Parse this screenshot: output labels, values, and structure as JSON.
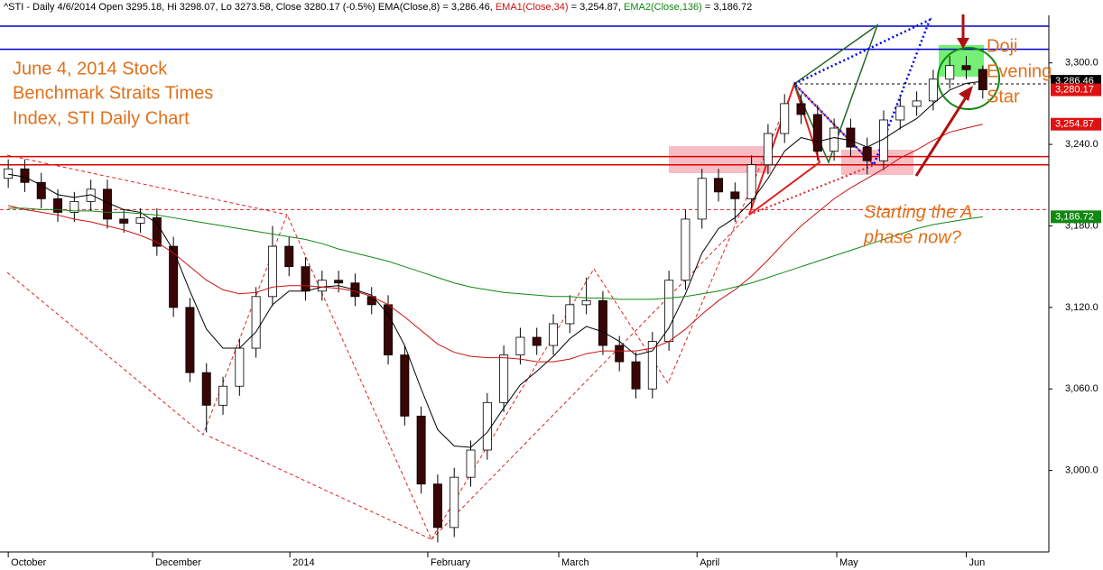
{
  "header": {
    "prefix": "^STI - Daily 4/6/2014 Open 3295.18, Hi 3298.07, Lo 3273.58, Close 3280.17 (-0.5%)",
    "values": [
      " = 3,286.46,",
      " = 3,254.87,",
      " = 3,186.72"
    ]
  },
  "annotations": [
    {
      "lines": [
        "June 4, 2014 Stock",
        "Benchmark Straits Times",
        "Index, STI Daily Chart"
      ],
      "color": "#e0701a"
    },
    {
      "lines": [
        "Doji",
        "Evening",
        "Star"
      ],
      "color": "#e0701a"
    },
    {
      "lines": [
        "Starting the A",
        "phase now?"
      ],
      "color": "#e0701a"
    }
  ],
  "chart_data": {
    "type": "candlestick",
    "open": [
      3215,
      3222,
      3212,
      3200,
      3190,
      3198,
      3207,
      3185,
      3182,
      3186,
      3165,
      3120,
      3072,
      3048,
      3062,
      3090,
      3128,
      3165,
      3150,
      3132,
      3140,
      3138,
      3128,
      3122,
      3085,
      3040,
      2990,
      2958,
      2995,
      3015,
      3050,
      3085,
      3098,
      3092,
      3108,
      3122,
      3125,
      3092,
      3080,
      3060,
      3095,
      3140,
      3185,
      3215,
      3205,
      3200,
      3225,
      3248,
      3270,
      3262,
      3235,
      3252,
      3238,
      3228,
      3258,
      3268,
      3272,
      3288,
      3298,
      3295.18
    ],
    "high": [
      3229,
      3229,
      3219,
      3207,
      3205,
      3214,
      3214,
      3192,
      3193,
      3193,
      3172,
      3127,
      3079,
      3069,
      3097,
      3135,
      3180,
      3172,
      3157,
      3147,
      3147,
      3145,
      3135,
      3129,
      3092,
      3047,
      2997,
      3002,
      3022,
      3057,
      3092,
      3105,
      3105,
      3115,
      3129,
      3142,
      3132,
      3099,
      3087,
      3102,
      3147,
      3192,
      3222,
      3222,
      3212,
      3232,
      3255,
      3277,
      3277,
      3269,
      3259,
      3259,
      3245,
      3265,
      3275,
      3279,
      3295,
      3305,
      3305,
      3298.07
    ],
    "low": [
      3208,
      3205,
      3193,
      3183,
      3183,
      3191,
      3178,
      3175,
      3175,
      3158,
      3113,
      3065,
      3028,
      3041,
      3055,
      3083,
      3121,
      3143,
      3125,
      3125,
      3131,
      3121,
      3115,
      3078,
      3033,
      2983,
      2947,
      2951,
      2988,
      3008,
      3043,
      3078,
      3085,
      3085,
      3101,
      3115,
      3085,
      3073,
      3053,
      3053,
      3088,
      3133,
      3178,
      3198,
      3183,
      3193,
      3218,
      3241,
      3255,
      3228,
      3228,
      3231,
      3218,
      3221,
      3251,
      3261,
      3265,
      3281,
      3288,
      3273.58
    ],
    "close": [
      3222,
      3212,
      3200,
      3190,
      3198,
      3207,
      3185,
      3182,
      3186,
      3165,
      3120,
      3072,
      3048,
      3062,
      3090,
      3128,
      3165,
      3150,
      3132,
      3140,
      3138,
      3128,
      3122,
      3085,
      3040,
      2990,
      2958,
      2995,
      3015,
      3050,
      3085,
      3098,
      3092,
      3108,
      3122,
      3125,
      3092,
      3080,
      3060,
      3095,
      3140,
      3185,
      3215,
      3205,
      3200,
      3225,
      3248,
      3270,
      3262,
      3235,
      3252,
      3238,
      3228,
      3258,
      3268,
      3272,
      3288,
      3298,
      3295,
      3280.17
    ],
    "close_label": "3,280.17",
    "up_color": "#ffffff",
    "down_color": "#3a0505",
    "series": [
      {
        "name": "EMA(Close,8)",
        "color": "#000000",
        "last_label": "3,286.46",
        "values": [
          3218,
          3216,
          3210,
          3203,
          3201,
          3203,
          3197,
          3192,
          3190,
          3182,
          3162,
          3132,
          3104,
          3090,
          3090,
          3102,
          3122,
          3132,
          3132,
          3135,
          3136,
          3133,
          3129,
          3115,
          3092,
          3060,
          3030,
          3018,
          3017,
          3028,
          3046,
          3063,
          3073,
          3084,
          3097,
          3106,
          3102,
          3095,
          3085,
          3088,
          3105,
          3130,
          3160,
          3178,
          3186,
          3198,
          3215,
          3235,
          3245,
          3242,
          3245,
          3243,
          3238,
          3244,
          3252,
          3259,
          3270,
          3280,
          3285,
          3286.46
        ]
      },
      {
        "name": "EMA1(Close,34)",
        "color": "#cc1111",
        "last_label": "3,254.87",
        "values": [
          3195,
          3192,
          3190,
          3188,
          3185,
          3183,
          3180,
          3177,
          3173,
          3168,
          3160,
          3150,
          3140,
          3133,
          3130,
          3131,
          3135,
          3136,
          3136,
          3135,
          3134,
          3132,
          3128,
          3122,
          3113,
          3103,
          3093,
          3087,
          3084,
          3083,
          3083,
          3082,
          3080,
          3080,
          3082,
          3086,
          3088,
          3088,
          3088,
          3090,
          3095,
          3104,
          3115,
          3125,
          3133,
          3143,
          3155,
          3168,
          3180,
          3190,
          3200,
          3208,
          3215,
          3222,
          3230,
          3236,
          3243,
          3249,
          3252,
          3254.87
        ]
      },
      {
        "name": "EMA2(Close,136)",
        "color": "#118811",
        "last_label": "3,186.72",
        "values": [
          3193,
          3193,
          3192,
          3192,
          3191,
          3191,
          3190,
          3190,
          3189,
          3188,
          3186,
          3184,
          3182,
          3180,
          3178,
          3176,
          3174,
          3172,
          3170,
          3167,
          3163,
          3160,
          3157,
          3154,
          3150,
          3146,
          3142,
          3138,
          3135,
          3133,
          3131,
          3130,
          3129,
          3128,
          3128,
          3127,
          3127,
          3126,
          3126,
          3126,
          3127,
          3128,
          3130,
          3132,
          3135,
          3138,
          3142,
          3146,
          3150,
          3154,
          3158,
          3162,
          3166,
          3170,
          3174,
          3178,
          3181,
          3183,
          3185,
          3186.72
        ]
      }
    ],
    "ylim": [
      2940,
      3335
    ],
    "yticks": [
      {
        "value": 3000,
        "label": "3,000.0"
      },
      {
        "value": 3060,
        "label": "3,060.0"
      },
      {
        "value": 3120,
        "label": "3,120.0"
      },
      {
        "value": 3180,
        "label": "3,180.0"
      },
      {
        "value": 3240,
        "label": "3,240.0"
      },
      {
        "value": 3300,
        "label": "3,300.0"
      }
    ],
    "xlim": [
      -0.5,
      63
    ],
    "xticks": [
      {
        "value": 0,
        "label": "October"
      },
      {
        "value": 8.74,
        "label": "December"
      },
      {
        "value": 17.05,
        "label": "2014"
      },
      {
        "value": 25.4,
        "label": "February"
      },
      {
        "value": 33.33,
        "label": "March"
      },
      {
        "value": 41.7,
        "label": "April"
      },
      {
        "value": 50.16,
        "label": "May"
      },
      {
        "value": 58,
        "label": "Jun"
      }
    ],
    "hlines": [
      {
        "value": 3327,
        "color": "#0000cc",
        "style": "solid"
      },
      {
        "value": 3310,
        "color": "#0000cc",
        "style": "solid"
      },
      {
        "value": 3231,
        "color": "#dd0000",
        "style": "solid"
      },
      {
        "value": 3225,
        "color": "#dd0000",
        "style": "solid"
      },
      {
        "value": 3192,
        "color": "#dd2222",
        "style": "dashed"
      }
    ]
  }
}
